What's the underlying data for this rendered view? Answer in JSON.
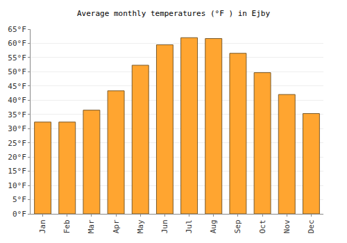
{
  "chart_data": {
    "type": "bar",
    "title": "Average monthly temperatures (°F ) in Ejby",
    "categories": [
      "Jan",
      "Feb",
      "Mar",
      "Apr",
      "May",
      "Jun",
      "Jul",
      "Aug",
      "Sep",
      "Oct",
      "Nov",
      "Dec"
    ],
    "values": [
      32.3,
      32.3,
      36.5,
      43.3,
      52.3,
      59.5,
      62.0,
      61.7,
      56.5,
      49.7,
      42.0,
      35.3
    ],
    "color": "#ffa530",
    "ylim": [
      0,
      65
    ],
    "yticks": [
      {
        "value": 0,
        "label": "0°F"
      },
      {
        "value": 5,
        "label": "5°F"
      },
      {
        "value": 10,
        "label": "10°F"
      },
      {
        "value": 15,
        "label": "15°F"
      },
      {
        "value": 20,
        "label": "20°F"
      },
      {
        "value": 25,
        "label": "25°F"
      },
      {
        "value": 30,
        "label": "30°F"
      },
      {
        "value": 35,
        "label": "35°F"
      },
      {
        "value": 40,
        "label": "40°F"
      },
      {
        "value": 45,
        "label": "45°F"
      },
      {
        "value": 50,
        "label": "50°F"
      },
      {
        "value": 55,
        "label": "55°F"
      },
      {
        "value": 60,
        "label": "60°F"
      },
      {
        "value": 65,
        "label": "65°F"
      }
    ],
    "grid": true
  }
}
